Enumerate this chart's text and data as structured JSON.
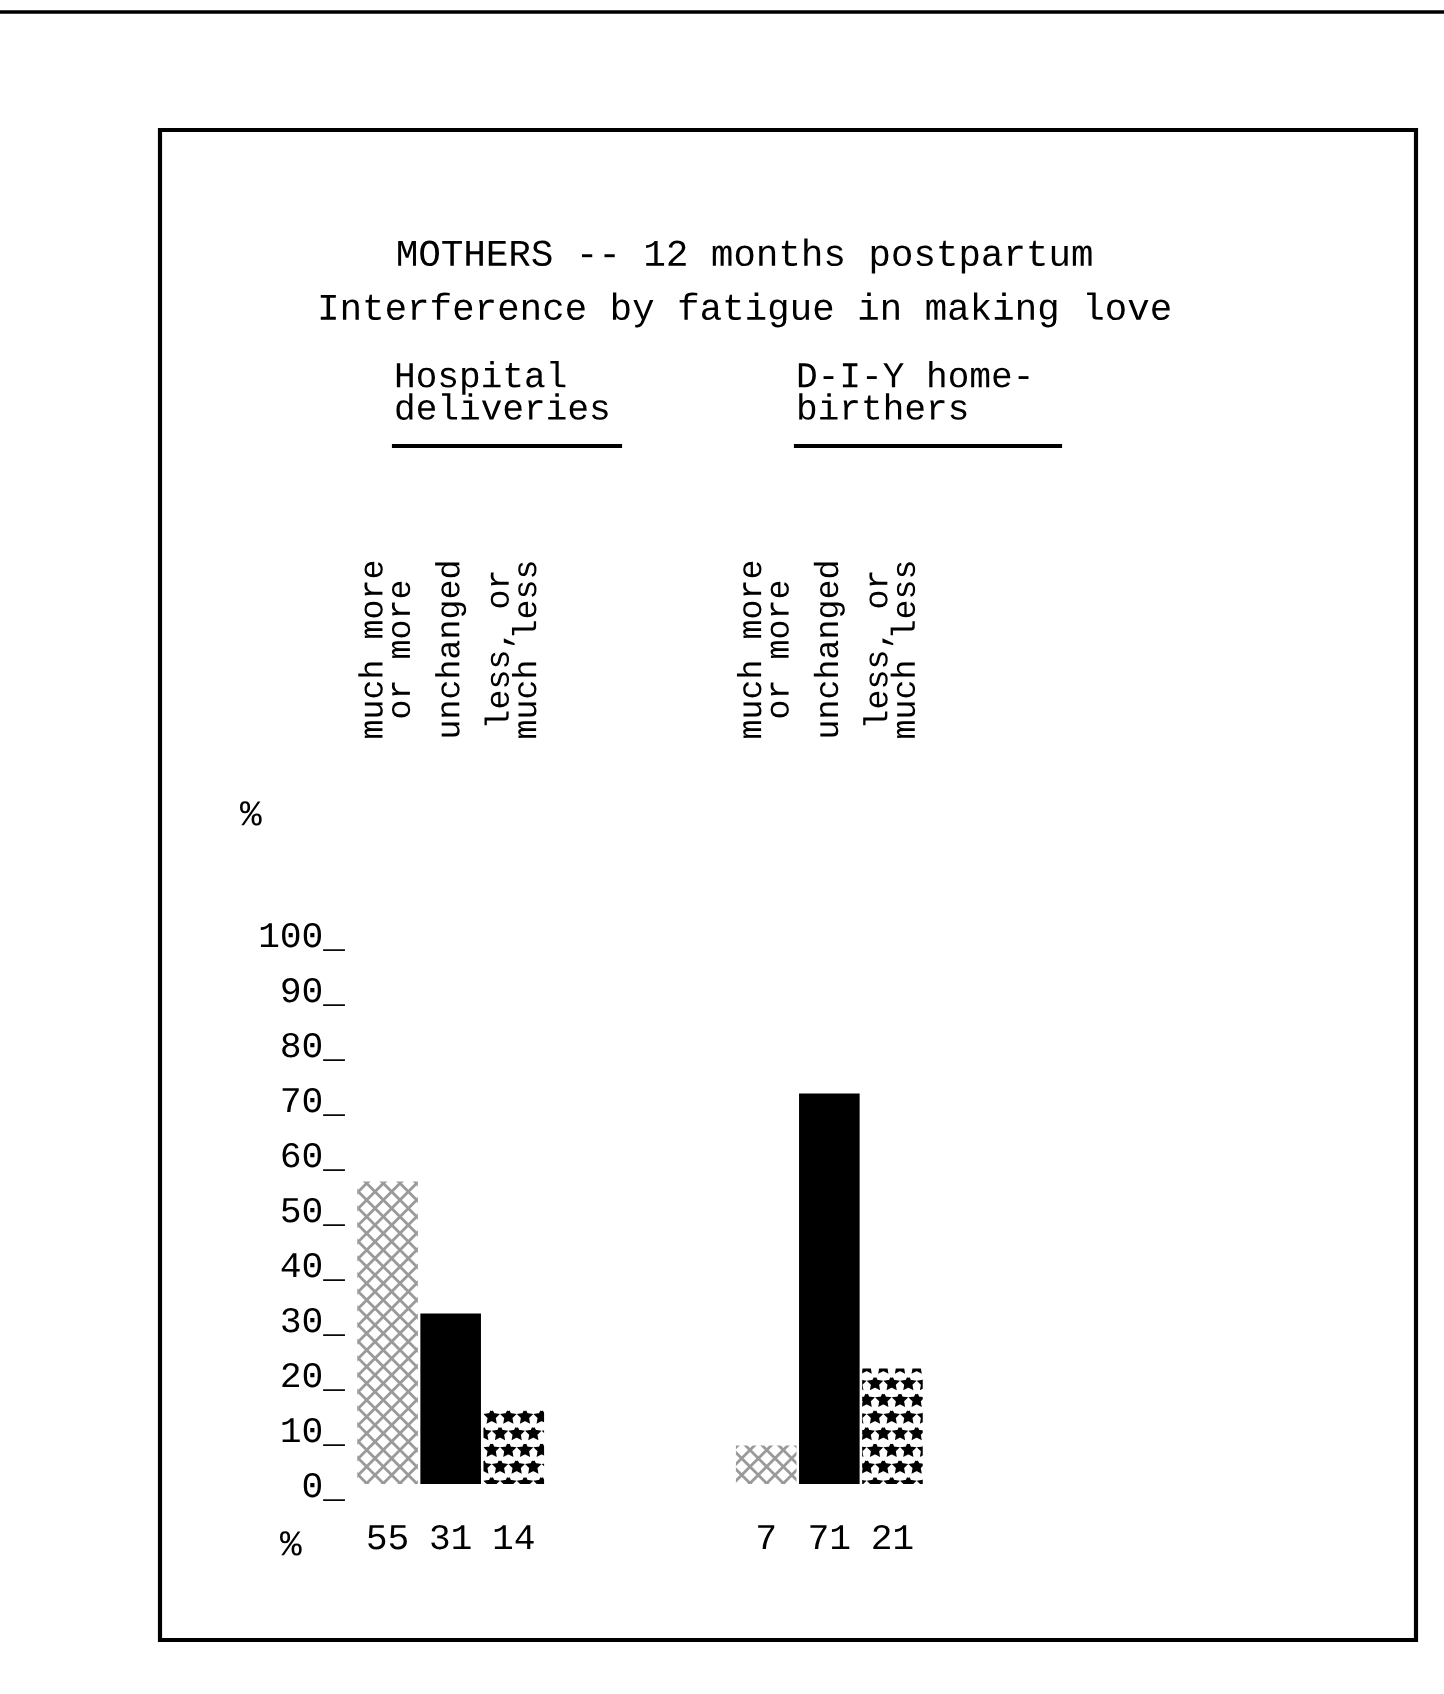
{
  "chart_data": {
    "type": "bar",
    "title": "MOTHERS -- 12 months postpartum",
    "subtitle": "Interference by fatigue in making love",
    "ylabel": "%",
    "categories": [
      "much more\nor more",
      "unchanged",
      "less, or\nmuch less",
      null,
      null,
      null,
      "much more\nor more",
      "unchanged",
      "less, or\nmuch less"
    ],
    "values": [
      55,
      31,
      14,
      null,
      null,
      null,
      7,
      71,
      21
    ],
    "colors": [
      "#9a9a9a",
      "#000000",
      "#d0d0d0",
      null,
      null,
      null,
      "#9a9a9a",
      "#000000",
      "#d0d0d0"
    ],
    "ylim": [
      0,
      100
    ],
    "yticks": [
      {
        "value": 0,
        "label": "0_"
      },
      {
        "value": 10,
        "label": "10_"
      },
      {
        "value": 20,
        "label": "20_"
      },
      {
        "value": 30,
        "label": "30_"
      },
      {
        "value": 40,
        "label": "40_"
      },
      {
        "value": 50,
        "label": "50_"
      },
      {
        "value": 60,
        "label": "60_"
      },
      {
        "value": 70,
        "label": "70_"
      },
      {
        "value": 80,
        "label": "80_"
      },
      {
        "value": 90,
        "label": "90_"
      },
      {
        "value": 100,
        "label": "100_"
      }
    ],
    "data_labels": true,
    "grid": false,
    "annotations": [
      "Hospital\ndeliveries",
      "D-I-Y home-\nbirthers",
      "%"
    ]
  }
}
